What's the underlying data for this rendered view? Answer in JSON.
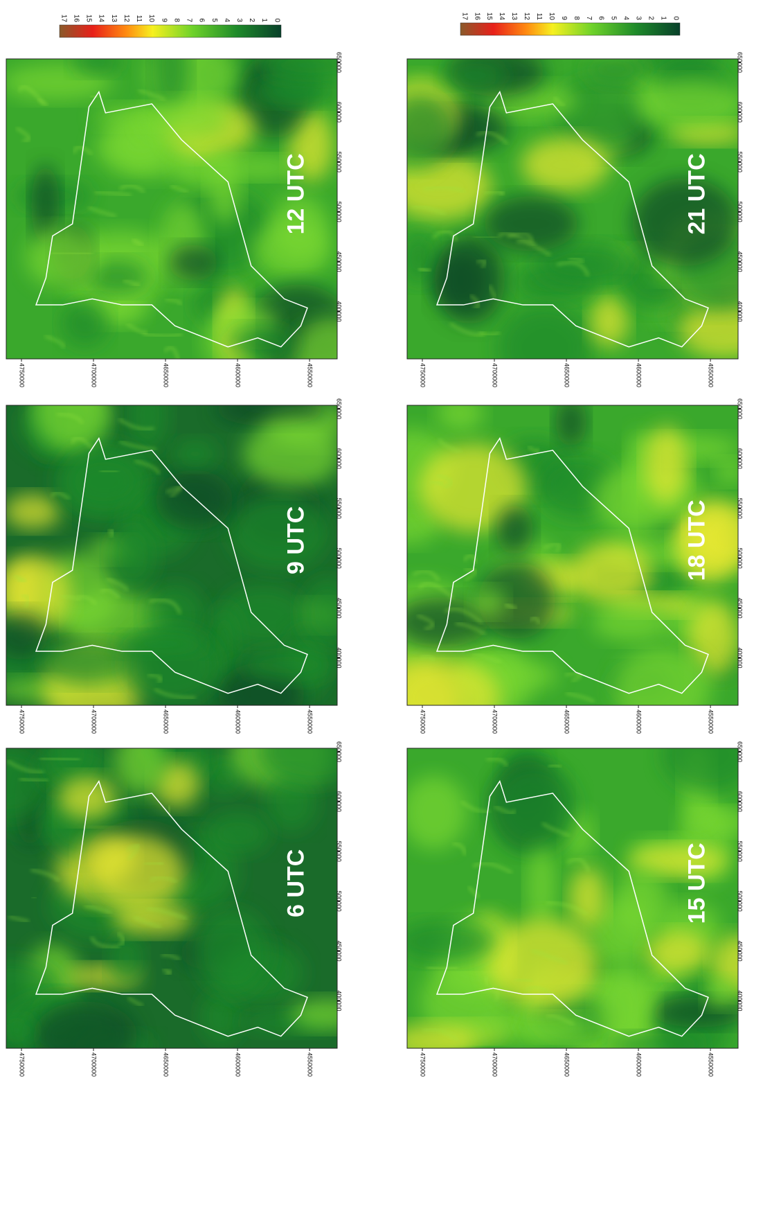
{
  "colorbar": {
    "labels": [
      "17",
      "16",
      "15",
      "14",
      "13",
      "12",
      "11",
      "10",
      "9",
      "8",
      "7",
      "6",
      "5",
      "4",
      "3",
      "2",
      "1",
      "0"
    ]
  },
  "x_ticks": [
    "4750000",
    "4700000",
    "4650000",
    "4600000",
    "4550000"
  ],
  "y_ticks": [
    "650000",
    "600000",
    "550000",
    "500000",
    "450000",
    "400000"
  ],
  "panels": [
    {
      "label": "12 UTC"
    },
    {
      "label": "9 UTC"
    },
    {
      "label": "6 UTC"
    },
    {
      "label": "21 UTC"
    },
    {
      "label": "18 UTC"
    },
    {
      "label": "15 UTC"
    }
  ]
}
